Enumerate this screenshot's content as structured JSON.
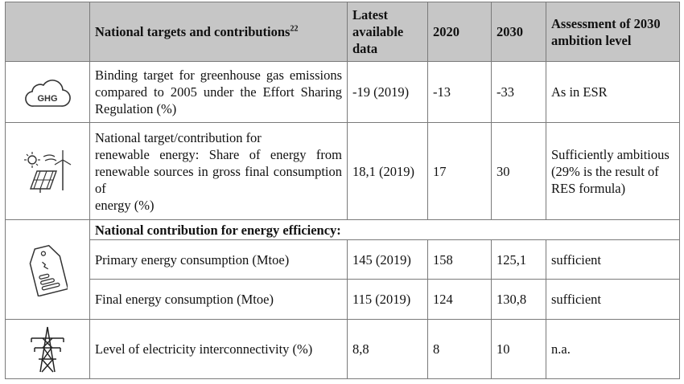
{
  "header": {
    "targets": "National targets and contributions",
    "targets_sup": "22",
    "latest": "Latest available data",
    "y2020": "2020",
    "y2030": "2030",
    "assessment": "Assessment of 2030 ambition level"
  },
  "ghg": {
    "icon": "cloud-ghg-icon",
    "icon_text": "GHG",
    "label": "Binding target for greenhouse gas emissions compared to 2005 under the Effort Sharing Regulation (%)",
    "latest": "-19 (2019)",
    "y2020": "-13",
    "y2030": "-33",
    "assessment": "As in ESR"
  },
  "res": {
    "icon": "solar-wind-icon",
    "label_l1": "National target/contribution for",
    "label_l2": "renewable energy: Share of energy from renewable sources in gross final consumption of",
    "label_l3": "energy (%)",
    "latest": "18,1 (2019)",
    "y2020": "17",
    "y2030": "30",
    "assessment_a": "Sufficiently ambitious",
    "assessment_b": "(29% is the result of RES formula)"
  },
  "efficiency": {
    "icon": "energy-label-icon",
    "heading": "National contribution for energy efficiency:",
    "rows": [
      {
        "label": "Primary energy consumption (Mtoe)",
        "latest": "145 (2019)",
        "y2020": "158",
        "y2030": "125,1",
        "assessment": "sufficient"
      },
      {
        "label": "Final energy consumption (Mtoe)",
        "latest": "115 (2019)",
        "y2020": "124",
        "y2030": "130,8",
        "assessment": "sufficient"
      }
    ]
  },
  "interconnect": {
    "icon": "power-pylon-icon",
    "label": "Level of electricity interconnectivity (%)",
    "latest": "8,8",
    "y2020": "8",
    "y2030": "10",
    "assessment": "n.a."
  }
}
